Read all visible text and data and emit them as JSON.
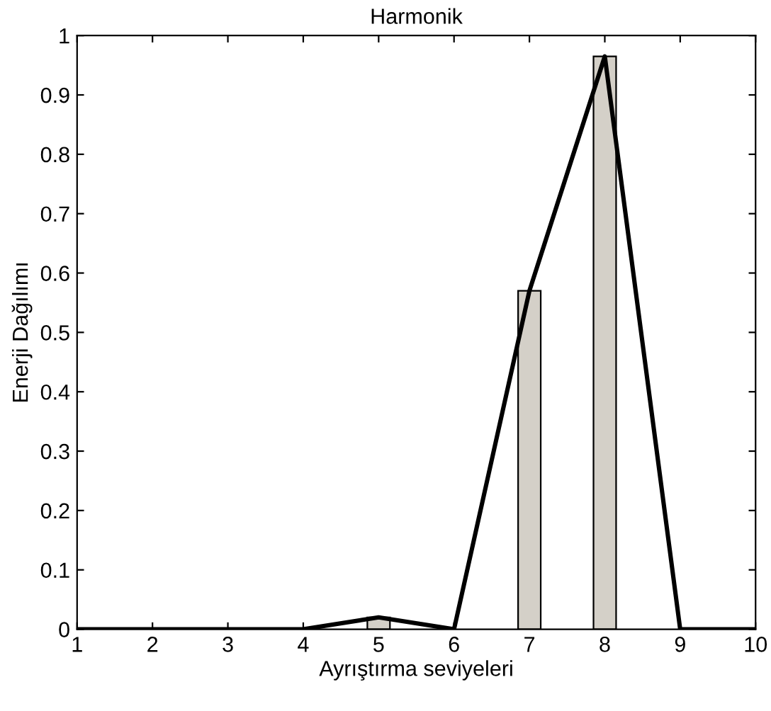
{
  "chart_data": {
    "type": "bar",
    "title": "Harmonik",
    "xlabel": "Ayrıştırma seviyeleri",
    "ylabel": "Enerji Dağılımı",
    "x": [
      1,
      2,
      3,
      4,
      5,
      6,
      7,
      8,
      9,
      10
    ],
    "series": [
      {
        "color": "#d4d0c8",
        "values": [
          0,
          0,
          0,
          0,
          0.02,
          0,
          0.57,
          0.965,
          0,
          0
        ]
      },
      {
        "type": "line",
        "color": "#000000",
        "values": [
          0,
          0,
          0,
          0,
          0.02,
          0,
          0.57,
          0.965,
          0,
          0
        ]
      }
    ],
    "xlim": [
      1,
      10
    ],
    "ylim": [
      0,
      1
    ],
    "xticks": [
      1,
      2,
      3,
      4,
      5,
      6,
      7,
      8,
      9,
      10
    ],
    "yticks": [
      0,
      0.1,
      0.2,
      0.3,
      0.4,
      0.5,
      0.6,
      0.7,
      0.8,
      0.9,
      1
    ],
    "grid": false,
    "marker": "none",
    "line_style": "solid"
  }
}
